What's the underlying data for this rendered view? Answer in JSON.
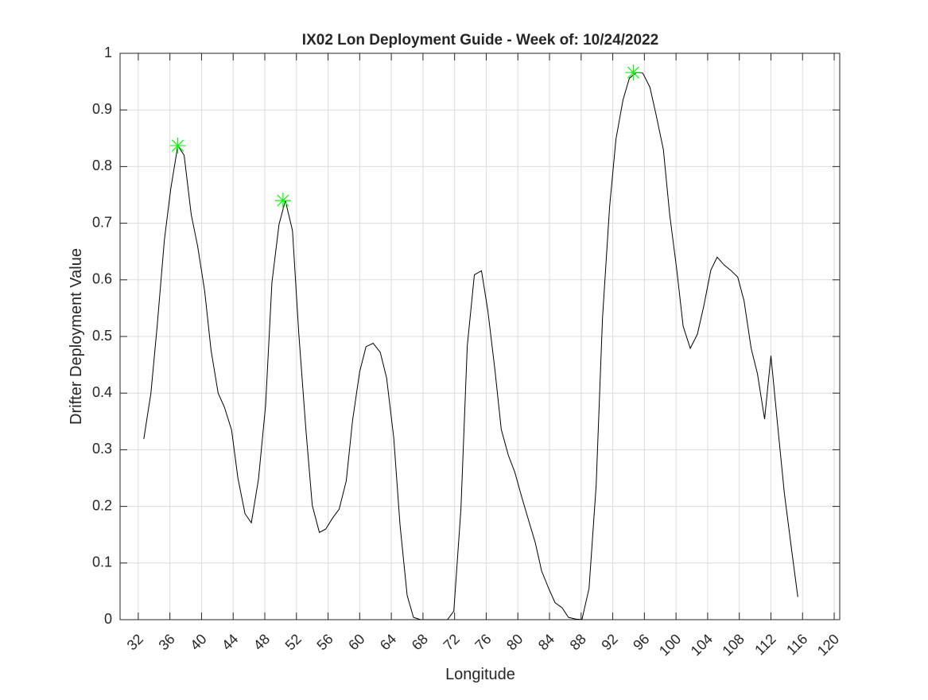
{
  "chart_data": {
    "type": "line",
    "title": "IX02 Lon Deployment Guide - Week of: 10/24/2022",
    "xlabel": "Longitude",
    "ylabel": "Drifter Deployment Value",
    "xlim": [
      29.7,
      120.7
    ],
    "ylim": [
      0,
      1
    ],
    "xticks": [
      32,
      36,
      40,
      44,
      48,
      52,
      56,
      60,
      64,
      68,
      72,
      76,
      80,
      84,
      88,
      92,
      96,
      100,
      104,
      108,
      112,
      116,
      120
    ],
    "yticks": [
      0,
      0.1,
      0.2,
      0.3,
      0.4,
      0.5,
      0.6,
      0.7,
      0.8,
      0.9,
      1
    ],
    "grid": true,
    "series": [
      {
        "color": "#000000",
        "marker": "none",
        "x": [
          32.7,
          33.6,
          34.4,
          35.3,
          36.1,
          37.0,
          37.8,
          38.7,
          39.5,
          40.4,
          41.2,
          42.1,
          42.9,
          43.8,
          44.6,
          45.5,
          46.3,
          47.2,
          48.1,
          48.9,
          49.8,
          50.6,
          51.5,
          52.3,
          53.2,
          54.0,
          54.9,
          55.7,
          56.6,
          57.4,
          58.3,
          59.1,
          60.0,
          60.8,
          61.7,
          62.6,
          63.4,
          64.3,
          65.1,
          66.0,
          66.8,
          67.7,
          68.5,
          69.4,
          70.2,
          71.1,
          71.9,
          72.8,
          73.6,
          74.5,
          75.4,
          76.2,
          77.1,
          77.9,
          78.8,
          79.6,
          80.5,
          81.3,
          82.2,
          83.0,
          83.9,
          84.7,
          85.6,
          86.4,
          87.3,
          88.1,
          89.0,
          89.9,
          90.7,
          91.6,
          92.4,
          93.3,
          94.1,
          95.0,
          95.8,
          96.7,
          97.5,
          98.4,
          99.2,
          100.1,
          100.9,
          101.8,
          102.7,
          103.5,
          104.4,
          105.2,
          106.1,
          106.9,
          107.8,
          108.6,
          109.5,
          110.3,
          111.2,
          112.0,
          112.9,
          113.7,
          114.6,
          115.4
        ],
        "values": [
          0.319,
          0.4,
          0.52,
          0.67,
          0.76,
          0.837,
          0.82,
          0.715,
          0.66,
          0.58,
          0.476,
          0.4,
          0.375,
          0.335,
          0.25,
          0.187,
          0.171,
          0.248,
          0.378,
          0.595,
          0.698,
          0.74,
          0.687,
          0.505,
          0.335,
          0.202,
          0.154,
          0.16,
          0.18,
          0.195,
          0.245,
          0.352,
          0.438,
          0.482,
          0.488,
          0.472,
          0.427,
          0.322,
          0.167,
          0.043,
          0.004,
          0,
          0,
          0,
          0,
          0,
          0.015,
          0.195,
          0.483,
          0.609,
          0.616,
          0.546,
          0.441,
          0.336,
          0.29,
          0.261,
          0.216,
          0.178,
          0.136,
          0.086,
          0.055,
          0.03,
          0.021,
          0.004,
          0.001,
          0,
          0.055,
          0.237,
          0.532,
          0.729,
          0.848,
          0.918,
          0.956,
          0.966,
          0.965,
          0.94,
          0.89,
          0.83,
          0.715,
          0.617,
          0.518,
          0.479,
          0.504,
          0.553,
          0.617,
          0.64,
          0.626,
          0.617,
          0.605,
          0.563,
          0.479,
          0.434,
          0.354,
          0.466,
          0.336,
          0.223,
          0.125,
          0.04
        ]
      },
      {
        "color": "#00ff00",
        "marker": "asterisk",
        "x": [
          37.0,
          50.3,
          94.6
        ],
        "values": [
          0.837,
          0.74,
          0.966
        ]
      }
    ]
  }
}
